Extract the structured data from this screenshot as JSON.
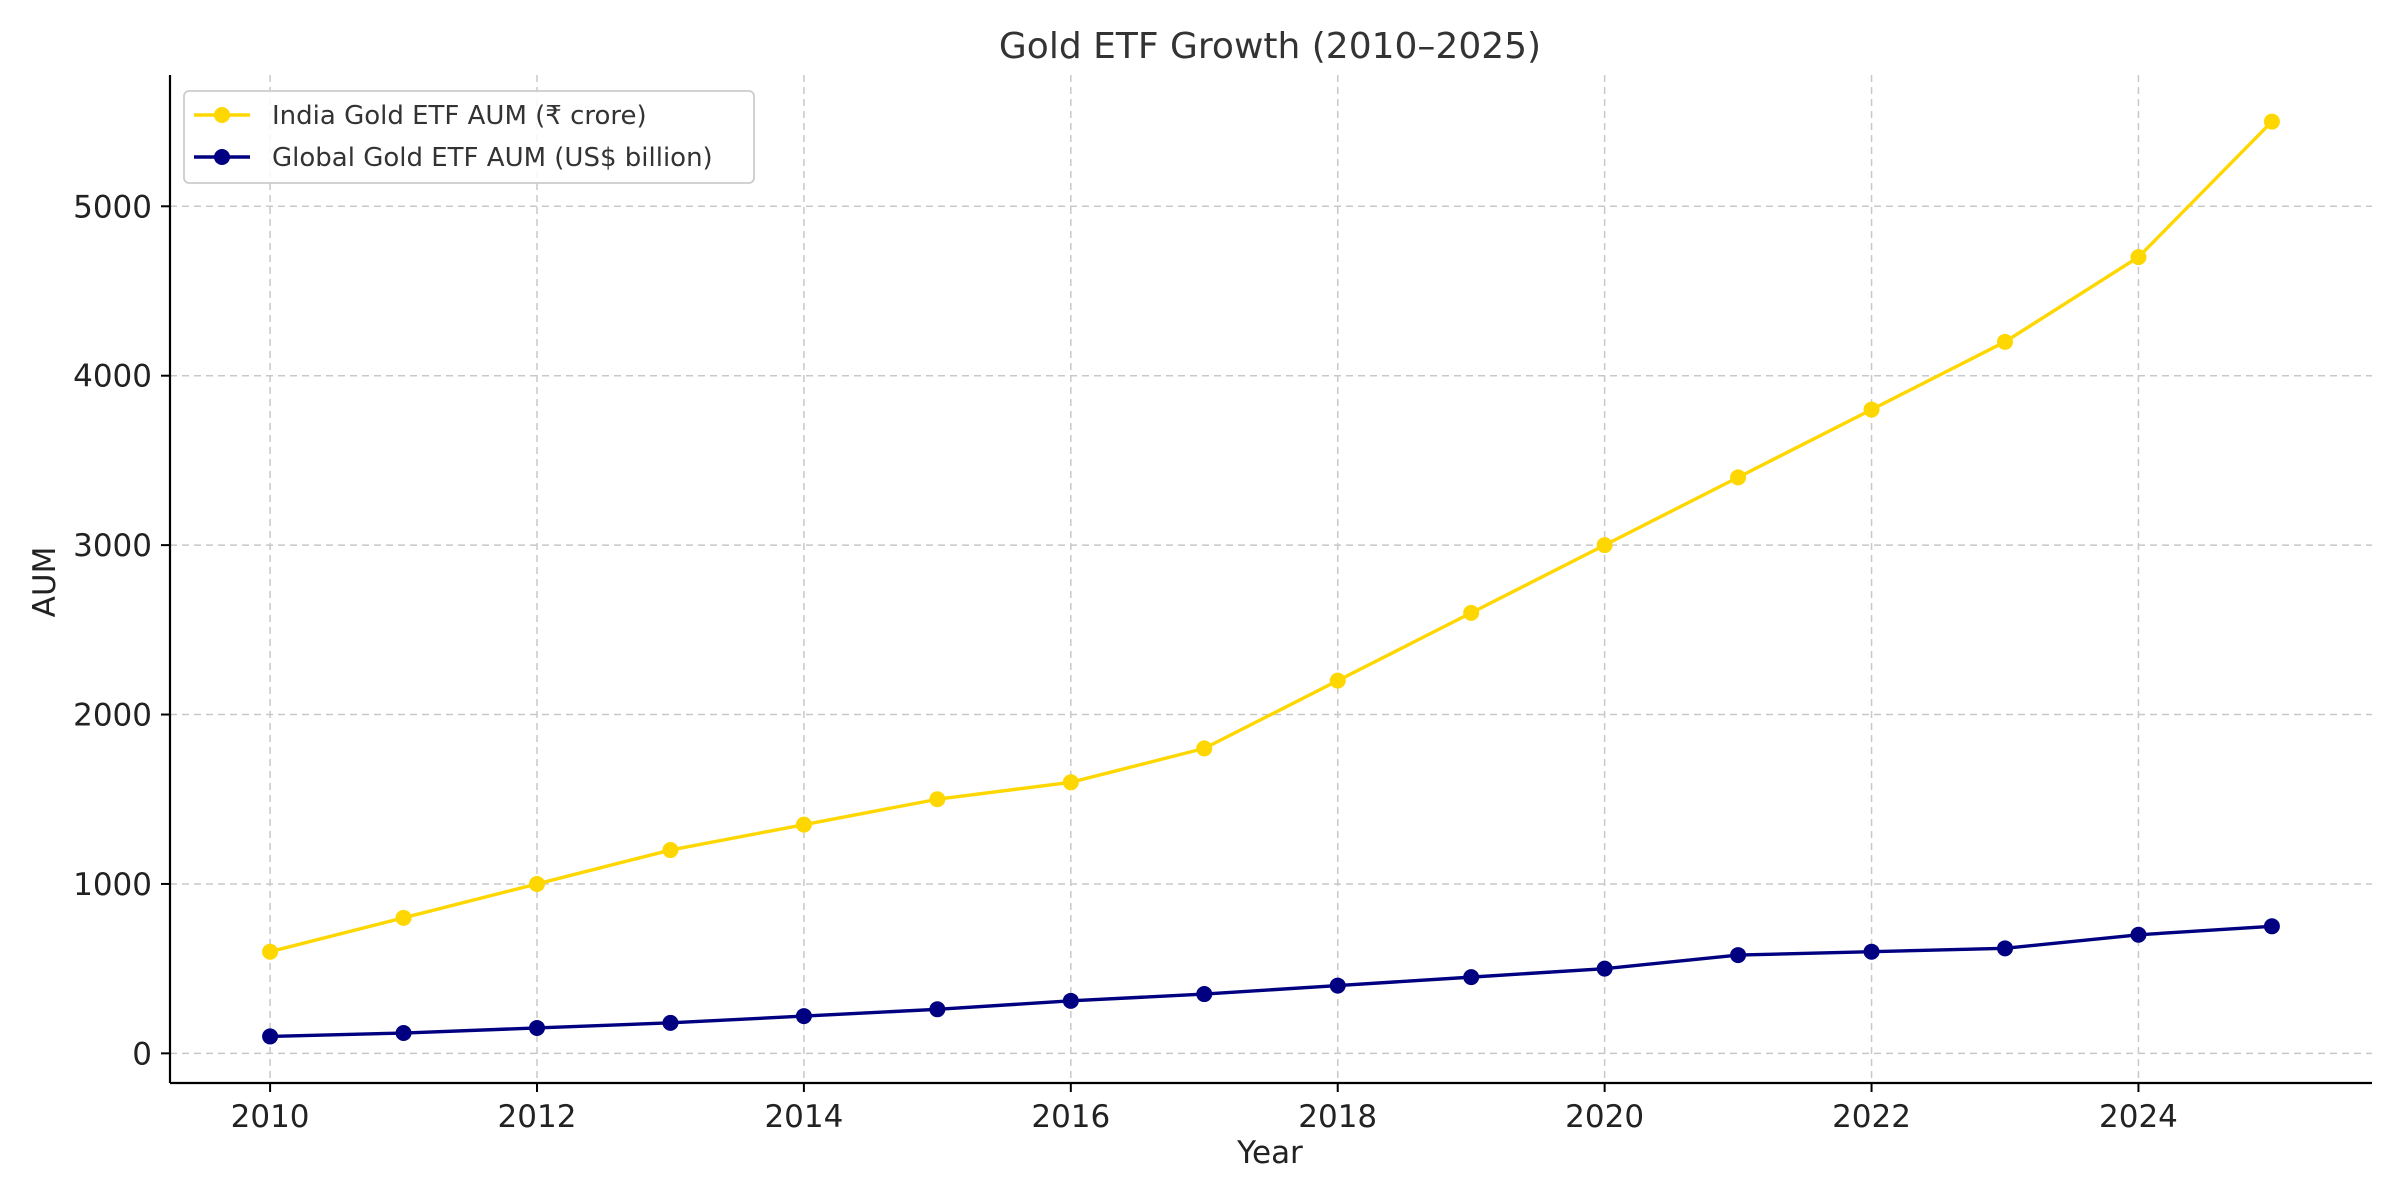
{
  "chart_data": {
    "type": "line",
    "title": "Gold ETF Growth (2010–2025)",
    "xlabel": "Year",
    "ylabel": "AUM",
    "x": [
      2010,
      2011,
      2012,
      2013,
      2014,
      2015,
      2016,
      2017,
      2018,
      2019,
      2020,
      2021,
      2022,
      2023,
      2024,
      2025
    ],
    "xlim": [
      2009.25,
      2025.75
    ],
    "ylim": [
      -175,
      5775
    ],
    "x_ticks": [
      "2010",
      "2012",
      "2014",
      "2016",
      "2018",
      "2020",
      "2022",
      "2024"
    ],
    "y_ticks": [
      "0",
      "1000",
      "2000",
      "3000",
      "4000",
      "5000"
    ],
    "grid": true,
    "legend_position": "top-left",
    "series": [
      {
        "name": "India Gold ETF AUM (₹ crore)",
        "color": "#FFD700",
        "marker": "circle",
        "values": [
          600,
          800,
          1000,
          1200,
          1350,
          1500,
          1600,
          1800,
          2200,
          2600,
          3000,
          3400,
          3800,
          4200,
          4700,
          5500
        ]
      },
      {
        "name": "Global Gold ETF AUM (US$ billion)",
        "color": "#000080",
        "marker": "circle",
        "values": [
          100,
          120,
          150,
          180,
          220,
          260,
          310,
          350,
          400,
          450,
          500,
          580,
          600,
          620,
          700,
          750
        ]
      }
    ]
  }
}
